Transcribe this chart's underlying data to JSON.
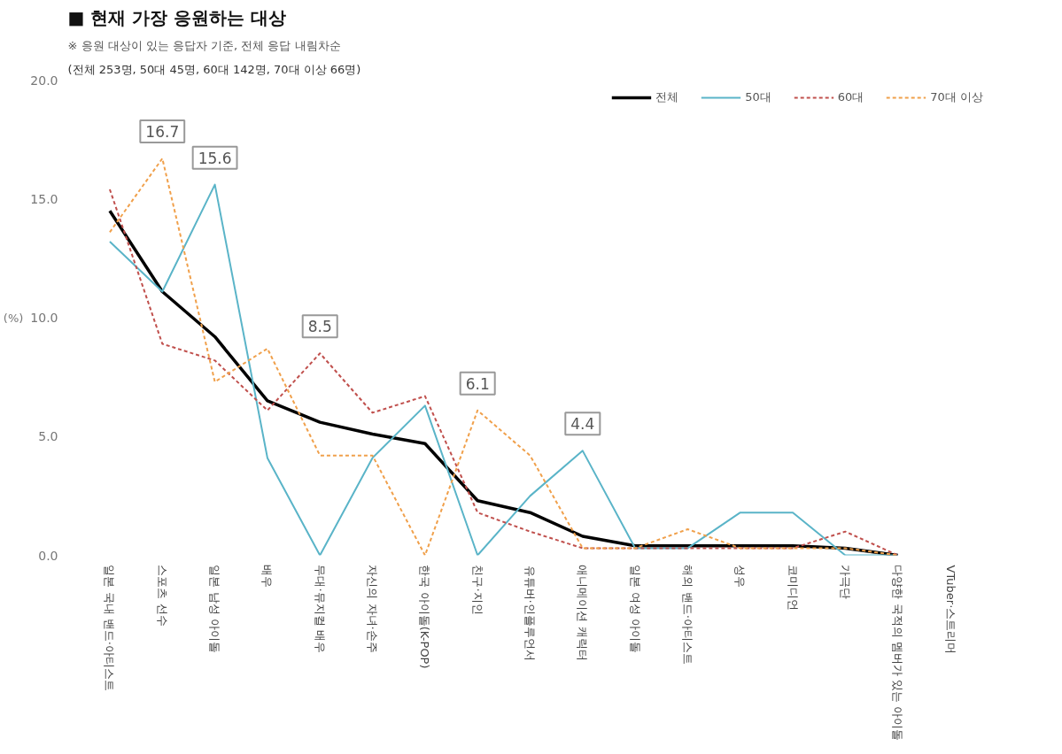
{
  "chart_data": {
    "type": "line",
    "title": "■ 현재 가장 응원하는 대상",
    "subtitle": "※ 응원 대상이 있는 응답자 기준, 전체 응답 내림차순",
    "ylabel": "(%)",
    "categories": [
      "일본 국내 밴드·아티스트",
      "스포츠 선수",
      "일본 남성 아이돌",
      "배우",
      "무대·뮤지컬 배우",
      "자신의 자녀·손주",
      "한국 아이돌(K-POP)",
      "친구·지인",
      "유튜버·인플루언서",
      "애니메이션 캐릭터",
      "일본 여성 아이돌",
      "해외 밴드·아티스트",
      "성우",
      "코미디언",
      "가극단",
      "다양한 국적의 멤버가 있는 아이돌",
      "VTuber·스트리머"
    ],
    "series": [
      {
        "name": "전체",
        "color": "#000000",
        "line_style": "solid",
        "values": [
          14.5,
          11.1,
          9.2,
          6.5,
          5.6,
          5.1,
          4.7,
          2.3,
          1.8,
          0.8,
          0.4,
          0.4,
          0.4,
          0.4,
          0.3,
          0.0,
          null
        ]
      },
      {
        "name": "50대",
        "color": "#5ab4c8",
        "line_style": "solid",
        "values": [
          13.2,
          11.1,
          15.6,
          4.1,
          0.0,
          4.1,
          6.3,
          0.0,
          2.5,
          4.4,
          0.3,
          0.3,
          1.8,
          1.8,
          0.0,
          0.0,
          null
        ]
      },
      {
        "name": "60대",
        "color": "#c0504d",
        "line_style": "dashed",
        "values": [
          15.4,
          8.9,
          8.2,
          6.1,
          8.5,
          6.0,
          6.7,
          1.8,
          1.0,
          0.3,
          0.3,
          0.3,
          0.3,
          0.3,
          1.0,
          0.0,
          null
        ]
      },
      {
        "name": "70대 이상",
        "color": "#f0a04b",
        "line_style": "dashed",
        "values": [
          13.6,
          16.7,
          7.3,
          8.7,
          4.2,
          4.2,
          0.0,
          6.1,
          4.2,
          0.3,
          0.3,
          1.1,
          0.3,
          0.3,
          0.3,
          0.0,
          null
        ]
      }
    ],
    "ylim": [
      0,
      20
    ],
    "yticks": [
      {
        "value": 0,
        "label": "0.0"
      },
      {
        "value": 5,
        "label": "5.0"
      },
      {
        "value": 10,
        "label": "10.0"
      },
      {
        "value": 15,
        "label": "15.0"
      },
      {
        "value": 20,
        "label": "20.0"
      }
    ],
    "legend": "top right",
    "grid": false,
    "annotations": [
      "(전체 253명, 50대 45명, 60대 142명, 70대 이상 66명)",
      {
        "text": "16.7",
        "x": "스포츠 선수",
        "y": 16.7
      },
      {
        "text": "15.6",
        "x": "일본 남성 아이돌",
        "y": 15.6
      },
      {
        "text": "8.5",
        "x": "무대·뮤지컬 배우",
        "y": 8.5
      },
      {
        "text": "6.1",
        "x": "친구·지인",
        "y": 6.1
      },
      {
        "text": "4.4",
        "x": "애니메이션 캐릭터",
        "y": 4.4
      }
    ]
  }
}
